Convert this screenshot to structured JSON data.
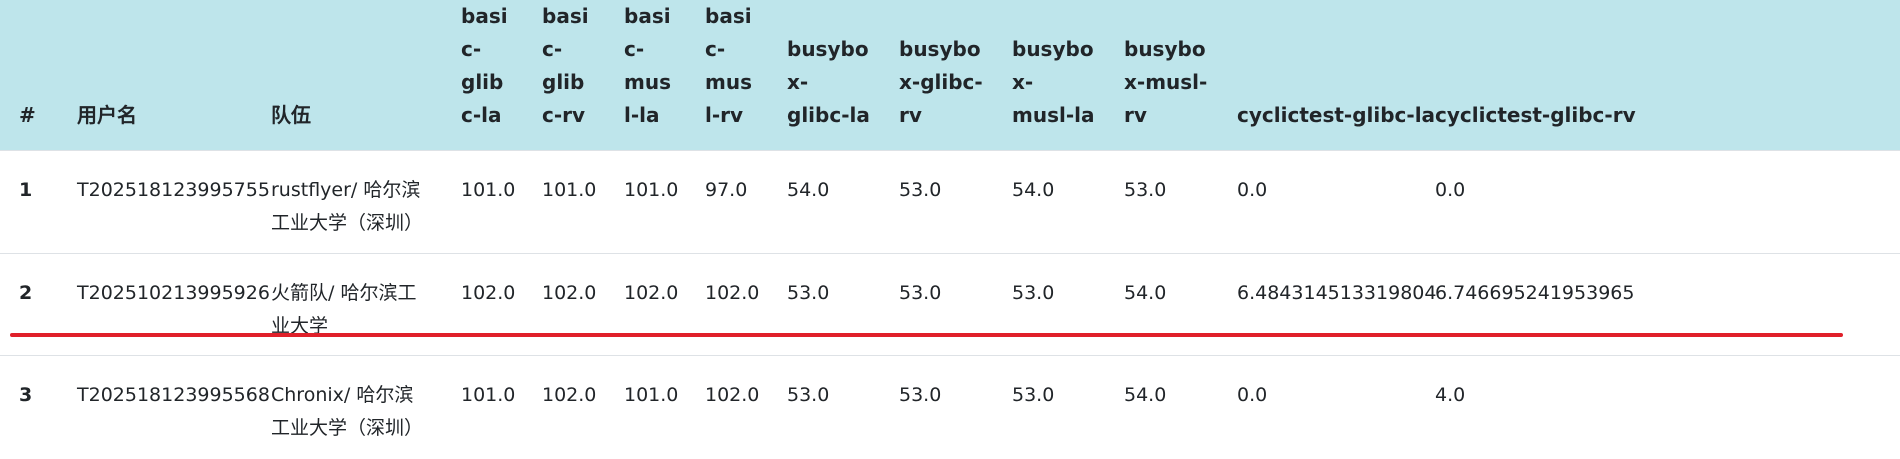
{
  "table": {
    "headers": [
      "#",
      "用户名",
      "队伍",
      "basic-glibc-la",
      "basic-glibc-rv",
      "basic-musl-la",
      "basic-musl-rv",
      "busybox-glibc-la",
      "busybox-glibc-rv",
      "busybox-musl-la",
      "busybox-musl-rv",
      "cyclictest-glibc-la",
      "cyclictest-glibc-rv"
    ],
    "rows": [
      {
        "rank": "1",
        "username": "T202518123995755",
        "team": "rustflyer/ 哈尔滨工业大学（深圳）",
        "scores": [
          "101.0",
          "101.0",
          "101.0",
          "97.0",
          "54.0",
          "53.0",
          "54.0",
          "53.0",
          "0.0",
          "0.0"
        ]
      },
      {
        "rank": "2",
        "username": "T202510213995926",
        "team": "火箭队/ 哈尔滨工业大学",
        "scores": [
          "102.0",
          "102.0",
          "102.0",
          "102.0",
          "53.0",
          "53.0",
          "53.0",
          "54.0",
          "6.484314513319804",
          "6.746695241953965"
        ]
      },
      {
        "rank": "3",
        "username": "T202518123995568",
        "team": "Chronix/ 哈尔滨工业大学（深圳）",
        "scores": [
          "101.0",
          "102.0",
          "101.0",
          "102.0",
          "53.0",
          "53.0",
          "53.0",
          "54.0",
          "0.0",
          "4.0"
        ]
      }
    ]
  },
  "highlight": {
    "color": "#e0202a"
  }
}
